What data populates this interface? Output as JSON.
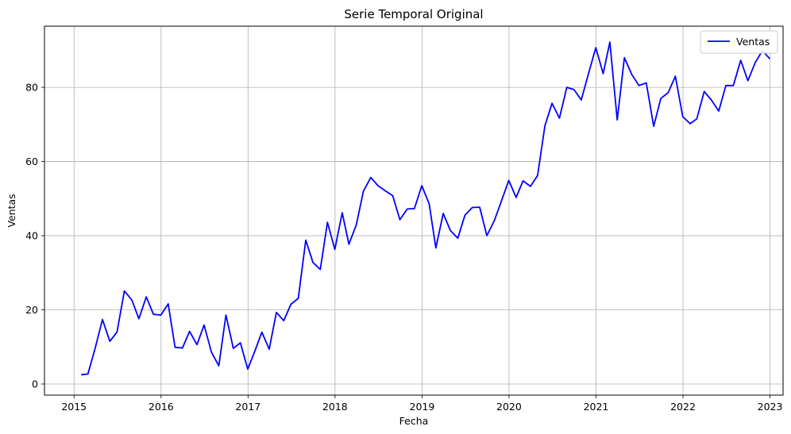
{
  "chart_data": {
    "type": "line",
    "title": "Serie Temporal Original",
    "xlabel": "Fecha",
    "ylabel": "Ventas",
    "xlim": [
      2014.66,
      2023.15
    ],
    "ylim": [
      -3,
      96.5
    ],
    "xticks": [
      2015,
      2016,
      2017,
      2018,
      2019,
      2020,
      2021,
      2022,
      2023
    ],
    "yticks": [
      0,
      20,
      40,
      60,
      80
    ],
    "grid": true,
    "legend": {
      "position": "top-right",
      "entries": [
        "Ventas"
      ]
    },
    "line_color": "#0000ff",
    "series": [
      {
        "name": "Ventas",
        "x": [
          "2015-01-31",
          "2015-02-28",
          "2015-03-31",
          "2015-04-30",
          "2015-05-31",
          "2015-06-30",
          "2015-07-31",
          "2015-08-31",
          "2015-09-30",
          "2015-10-31",
          "2015-11-30",
          "2015-12-31",
          "2016-01-31",
          "2016-02-29",
          "2016-03-31",
          "2016-04-30",
          "2016-05-31",
          "2016-06-30",
          "2016-07-31",
          "2016-08-31",
          "2016-09-30",
          "2016-10-31",
          "2016-11-30",
          "2016-12-31",
          "2017-01-31",
          "2017-02-28",
          "2017-03-31",
          "2017-04-30",
          "2017-05-31",
          "2017-06-30",
          "2017-07-31",
          "2017-08-31",
          "2017-09-30",
          "2017-10-31",
          "2017-11-30",
          "2017-12-31",
          "2018-01-31",
          "2018-02-28",
          "2018-03-31",
          "2018-04-30",
          "2018-05-31",
          "2018-06-30",
          "2018-07-31",
          "2018-08-31",
          "2018-09-30",
          "2018-10-31",
          "2018-11-30",
          "2018-12-31",
          "2019-01-31",
          "2019-02-28",
          "2019-03-31",
          "2019-04-30",
          "2019-05-31",
          "2019-06-30",
          "2019-07-31",
          "2019-08-31",
          "2019-09-30",
          "2019-10-31",
          "2019-11-30",
          "2019-12-31",
          "2020-01-31",
          "2020-02-29",
          "2020-03-31",
          "2020-04-30",
          "2020-05-31",
          "2020-06-30",
          "2020-07-31",
          "2020-08-31",
          "2020-09-30",
          "2020-10-31",
          "2020-11-30",
          "2020-12-31",
          "2021-01-31",
          "2021-02-28",
          "2021-03-31",
          "2021-04-30",
          "2021-05-31",
          "2021-06-30",
          "2021-07-31",
          "2021-08-31",
          "2021-09-30",
          "2021-10-31",
          "2021-11-30",
          "2021-12-31",
          "2022-01-31",
          "2022-02-28",
          "2022-03-31",
          "2022-04-30",
          "2022-05-31",
          "2022-06-30",
          "2022-07-31",
          "2022-08-31",
          "2022-09-30",
          "2022-10-31",
          "2022-11-30",
          "2022-12-31"
        ],
        "values": [
          2.5,
          2.7,
          9.8,
          17.4,
          11.5,
          14.0,
          25.1,
          22.7,
          17.6,
          23.5,
          18.8,
          18.6,
          21.6,
          9.9,
          9.7,
          14.2,
          10.6,
          15.9,
          8.6,
          4.9,
          18.6,
          9.6,
          11.1,
          4.0,
          9.1,
          14.0,
          9.4,
          19.3,
          17.1,
          21.5,
          23.1,
          38.8,
          32.8,
          30.9,
          43.6,
          36.3,
          46.2,
          37.7,
          42.9,
          52.0,
          55.7,
          53.5,
          52.1,
          50.8,
          44.3,
          47.2,
          47.3,
          53.5,
          48.6,
          36.7,
          46.0,
          41.4,
          39.3,
          45.5,
          47.6,
          47.7,
          40.0,
          44.0,
          49.3,
          54.9,
          50.3,
          54.8,
          53.3,
          56.2,
          69.6,
          75.7,
          71.7,
          80.0,
          79.4,
          76.6,
          83.6,
          90.7,
          83.7,
          92.2,
          71.2,
          88.0,
          83.5,
          80.5,
          81.2,
          69.5,
          77.0,
          78.6,
          83.0,
          72.1,
          70.2,
          71.5,
          78.9,
          76.6,
          73.6,
          80.5,
          80.5,
          87.3,
          81.8,
          86.7,
          89.9,
          87.7
        ]
      }
    ]
  }
}
